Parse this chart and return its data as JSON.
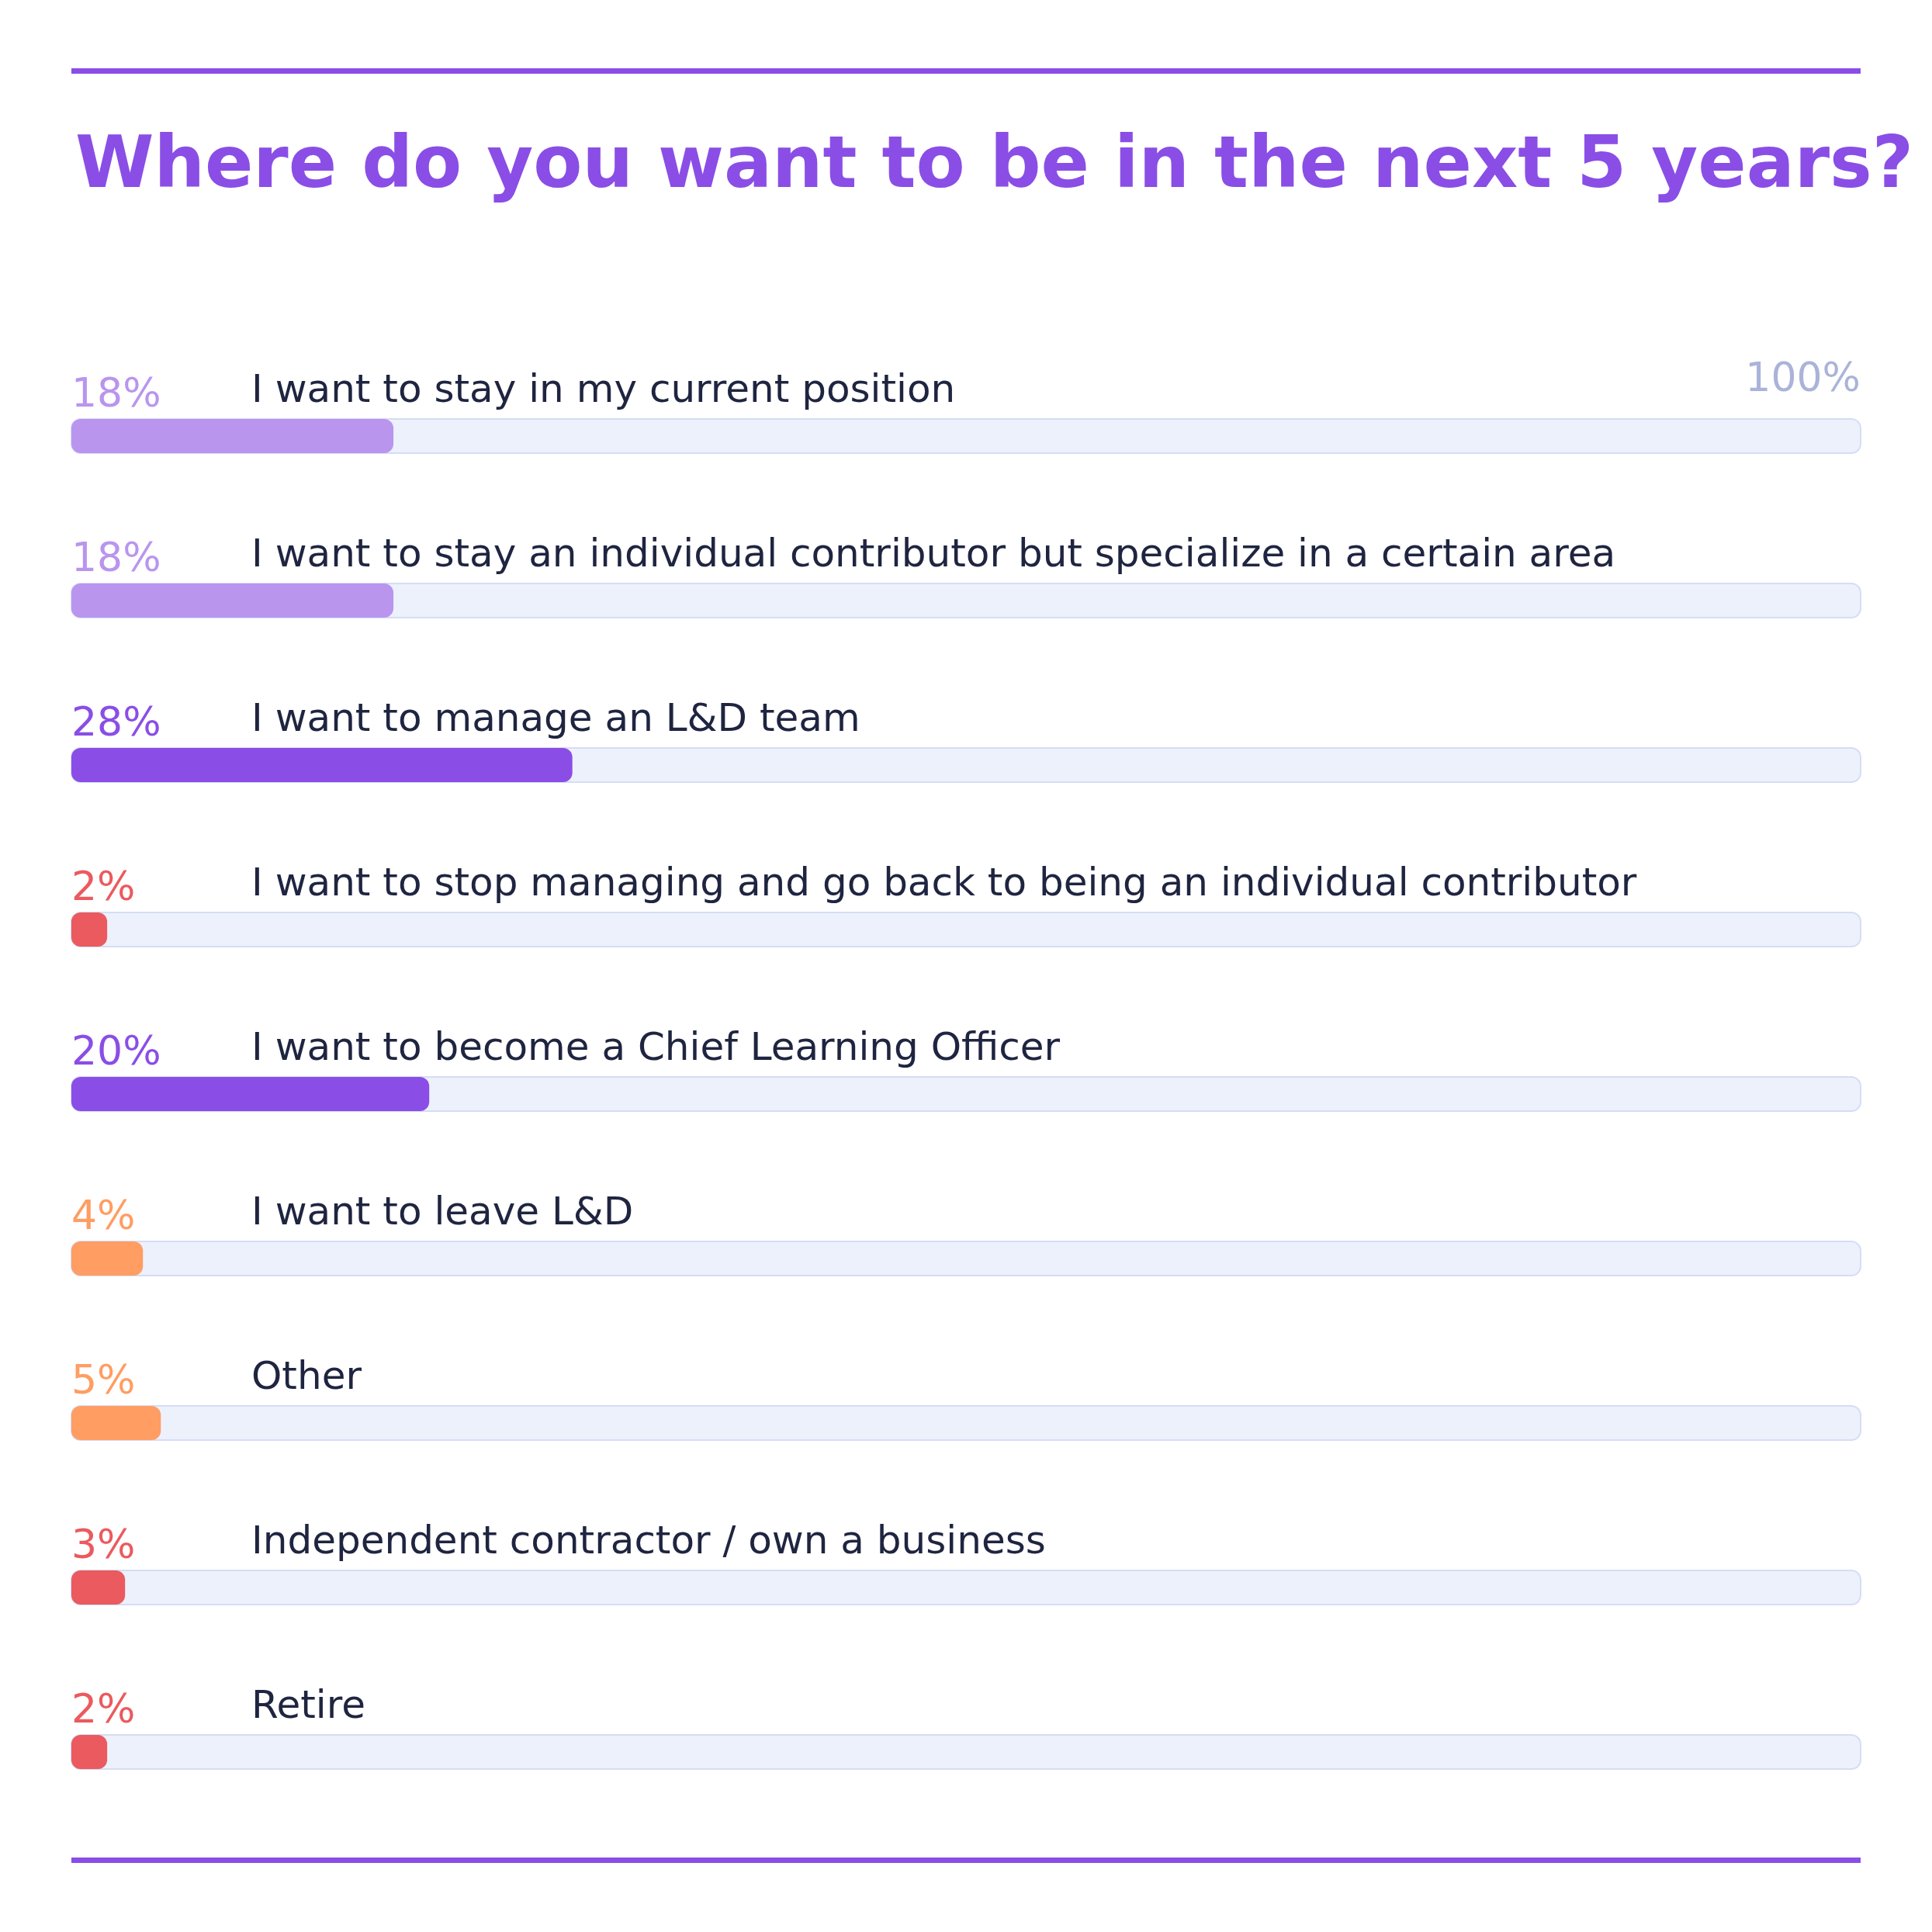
{
  "chart_data": {
    "type": "bar",
    "orientation": "horizontal",
    "title": "Where do you want to be in the next 5 years?",
    "categories": [
      "I want to stay in my current position",
      "I want to stay an individual contributor but specialize in a certain area",
      "I want to manage an L&D team",
      "I want to stop managing and go back to being an individual contributor",
      "I want to become a Chief Learning Officer",
      "I want to leave L&D",
      "Other",
      "Independent contractor / own a business",
      "Retire"
    ],
    "values": [
      18,
      18,
      28,
      2,
      20,
      4,
      5,
      3,
      2
    ],
    "colors": [
      "#b995ee",
      "#b995ee",
      "#8a4ee6",
      "#eb5a5e",
      "#8a4ee6",
      "#ff9d63",
      "#ff9d63",
      "#eb5a5e",
      "#eb5a5e"
    ],
    "value_labels": [
      "18%",
      "18%",
      "28%",
      "2%",
      "20%",
      "4%",
      "5%",
      "3%",
      "2%"
    ],
    "xlim": [
      0,
      100
    ],
    "annotations": [
      "100%"
    ]
  }
}
